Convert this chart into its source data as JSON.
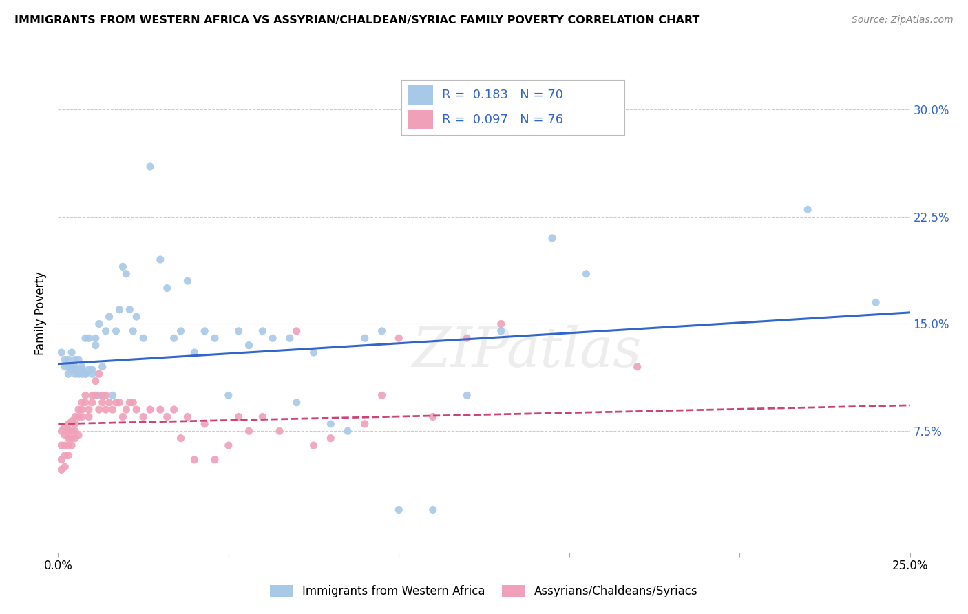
{
  "title": "IMMIGRANTS FROM WESTERN AFRICA VS ASSYRIAN/CHALDEAN/SYRIAC FAMILY POVERTY CORRELATION CHART",
  "source": "Source: ZipAtlas.com",
  "ylabel": "Family Poverty",
  "y_ticks": [
    0.075,
    0.15,
    0.225,
    0.3
  ],
  "y_tick_labels": [
    "7.5%",
    "15.0%",
    "22.5%",
    "30.0%"
  ],
  "x_range": [
    0.0,
    0.25
  ],
  "y_range": [
    -0.01,
    0.325
  ],
  "blue_R": 0.183,
  "blue_N": 70,
  "pink_R": 0.097,
  "pink_N": 76,
  "blue_color": "#A8C8E8",
  "pink_color": "#F0A0B8",
  "blue_line_color": "#3366CC",
  "pink_line_color": "#CC4477",
  "watermark": "ZIPatlas",
  "legend_label_blue": "Immigrants from Western Africa",
  "legend_label_pink": "Assyrians/Chaldeans/Syriacs",
  "blue_scatter_x": [
    0.001,
    0.002,
    0.002,
    0.003,
    0.003,
    0.003,
    0.004,
    0.004,
    0.004,
    0.005,
    0.005,
    0.005,
    0.005,
    0.006,
    0.006,
    0.007,
    0.007,
    0.007,
    0.008,
    0.008,
    0.008,
    0.009,
    0.009,
    0.01,
    0.01,
    0.011,
    0.011,
    0.012,
    0.012,
    0.013,
    0.014,
    0.015,
    0.016,
    0.017,
    0.018,
    0.019,
    0.02,
    0.021,
    0.022,
    0.023,
    0.025,
    0.027,
    0.03,
    0.032,
    0.034,
    0.036,
    0.038,
    0.04,
    0.043,
    0.046,
    0.05,
    0.053,
    0.056,
    0.06,
    0.063,
    0.068,
    0.07,
    0.075,
    0.08,
    0.085,
    0.09,
    0.095,
    0.1,
    0.11,
    0.12,
    0.13,
    0.145,
    0.155,
    0.22,
    0.24
  ],
  "blue_scatter_y": [
    0.13,
    0.12,
    0.125,
    0.115,
    0.12,
    0.125,
    0.13,
    0.118,
    0.12,
    0.125,
    0.115,
    0.118,
    0.12,
    0.115,
    0.125,
    0.115,
    0.12,
    0.118,
    0.115,
    0.14,
    0.115,
    0.14,
    0.118,
    0.118,
    0.115,
    0.135,
    0.14,
    0.15,
    0.1,
    0.12,
    0.145,
    0.155,
    0.1,
    0.145,
    0.16,
    0.19,
    0.185,
    0.16,
    0.145,
    0.155,
    0.14,
    0.26,
    0.195,
    0.175,
    0.14,
    0.145,
    0.18,
    0.13,
    0.145,
    0.14,
    0.1,
    0.145,
    0.135,
    0.145,
    0.14,
    0.14,
    0.095,
    0.13,
    0.08,
    0.075,
    0.14,
    0.145,
    0.02,
    0.02,
    0.1,
    0.145,
    0.21,
    0.185,
    0.23,
    0.165
  ],
  "pink_scatter_x": [
    0.001,
    0.001,
    0.001,
    0.001,
    0.002,
    0.002,
    0.002,
    0.002,
    0.002,
    0.003,
    0.003,
    0.003,
    0.003,
    0.003,
    0.004,
    0.004,
    0.004,
    0.004,
    0.005,
    0.005,
    0.005,
    0.005,
    0.006,
    0.006,
    0.006,
    0.007,
    0.007,
    0.007,
    0.008,
    0.008,
    0.009,
    0.009,
    0.01,
    0.01,
    0.011,
    0.011,
    0.012,
    0.012,
    0.013,
    0.013,
    0.014,
    0.014,
    0.015,
    0.016,
    0.017,
    0.018,
    0.019,
    0.02,
    0.021,
    0.022,
    0.023,
    0.025,
    0.027,
    0.03,
    0.032,
    0.034,
    0.036,
    0.038,
    0.04,
    0.043,
    0.046,
    0.05,
    0.053,
    0.056,
    0.06,
    0.065,
    0.07,
    0.075,
    0.08,
    0.09,
    0.095,
    0.1,
    0.11,
    0.12,
    0.13,
    0.17
  ],
  "pink_scatter_y": [
    0.075,
    0.065,
    0.055,
    0.048,
    0.078,
    0.072,
    0.065,
    0.058,
    0.05,
    0.08,
    0.075,
    0.07,
    0.065,
    0.058,
    0.082,
    0.075,
    0.07,
    0.065,
    0.085,
    0.08,
    0.075,
    0.07,
    0.09,
    0.085,
    0.072,
    0.095,
    0.09,
    0.085,
    0.1,
    0.095,
    0.09,
    0.085,
    0.1,
    0.095,
    0.1,
    0.11,
    0.115,
    0.09,
    0.1,
    0.095,
    0.09,
    0.1,
    0.095,
    0.09,
    0.095,
    0.095,
    0.085,
    0.09,
    0.095,
    0.095,
    0.09,
    0.085,
    0.09,
    0.09,
    0.085,
    0.09,
    0.07,
    0.085,
    0.055,
    0.08,
    0.055,
    0.065,
    0.085,
    0.075,
    0.085,
    0.075,
    0.145,
    0.065,
    0.07,
    0.08,
    0.1,
    0.14,
    0.085,
    0.14,
    0.15,
    0.12
  ],
  "blue_trendline_x": [
    0.0,
    0.25
  ],
  "blue_trendline_y": [
    0.122,
    0.158
  ],
  "pink_trendline_x": [
    0.0,
    0.25
  ],
  "pink_trendline_y": [
    0.08,
    0.093
  ],
  "background_color": "#FFFFFF",
  "grid_color": "#CCCCCC"
}
